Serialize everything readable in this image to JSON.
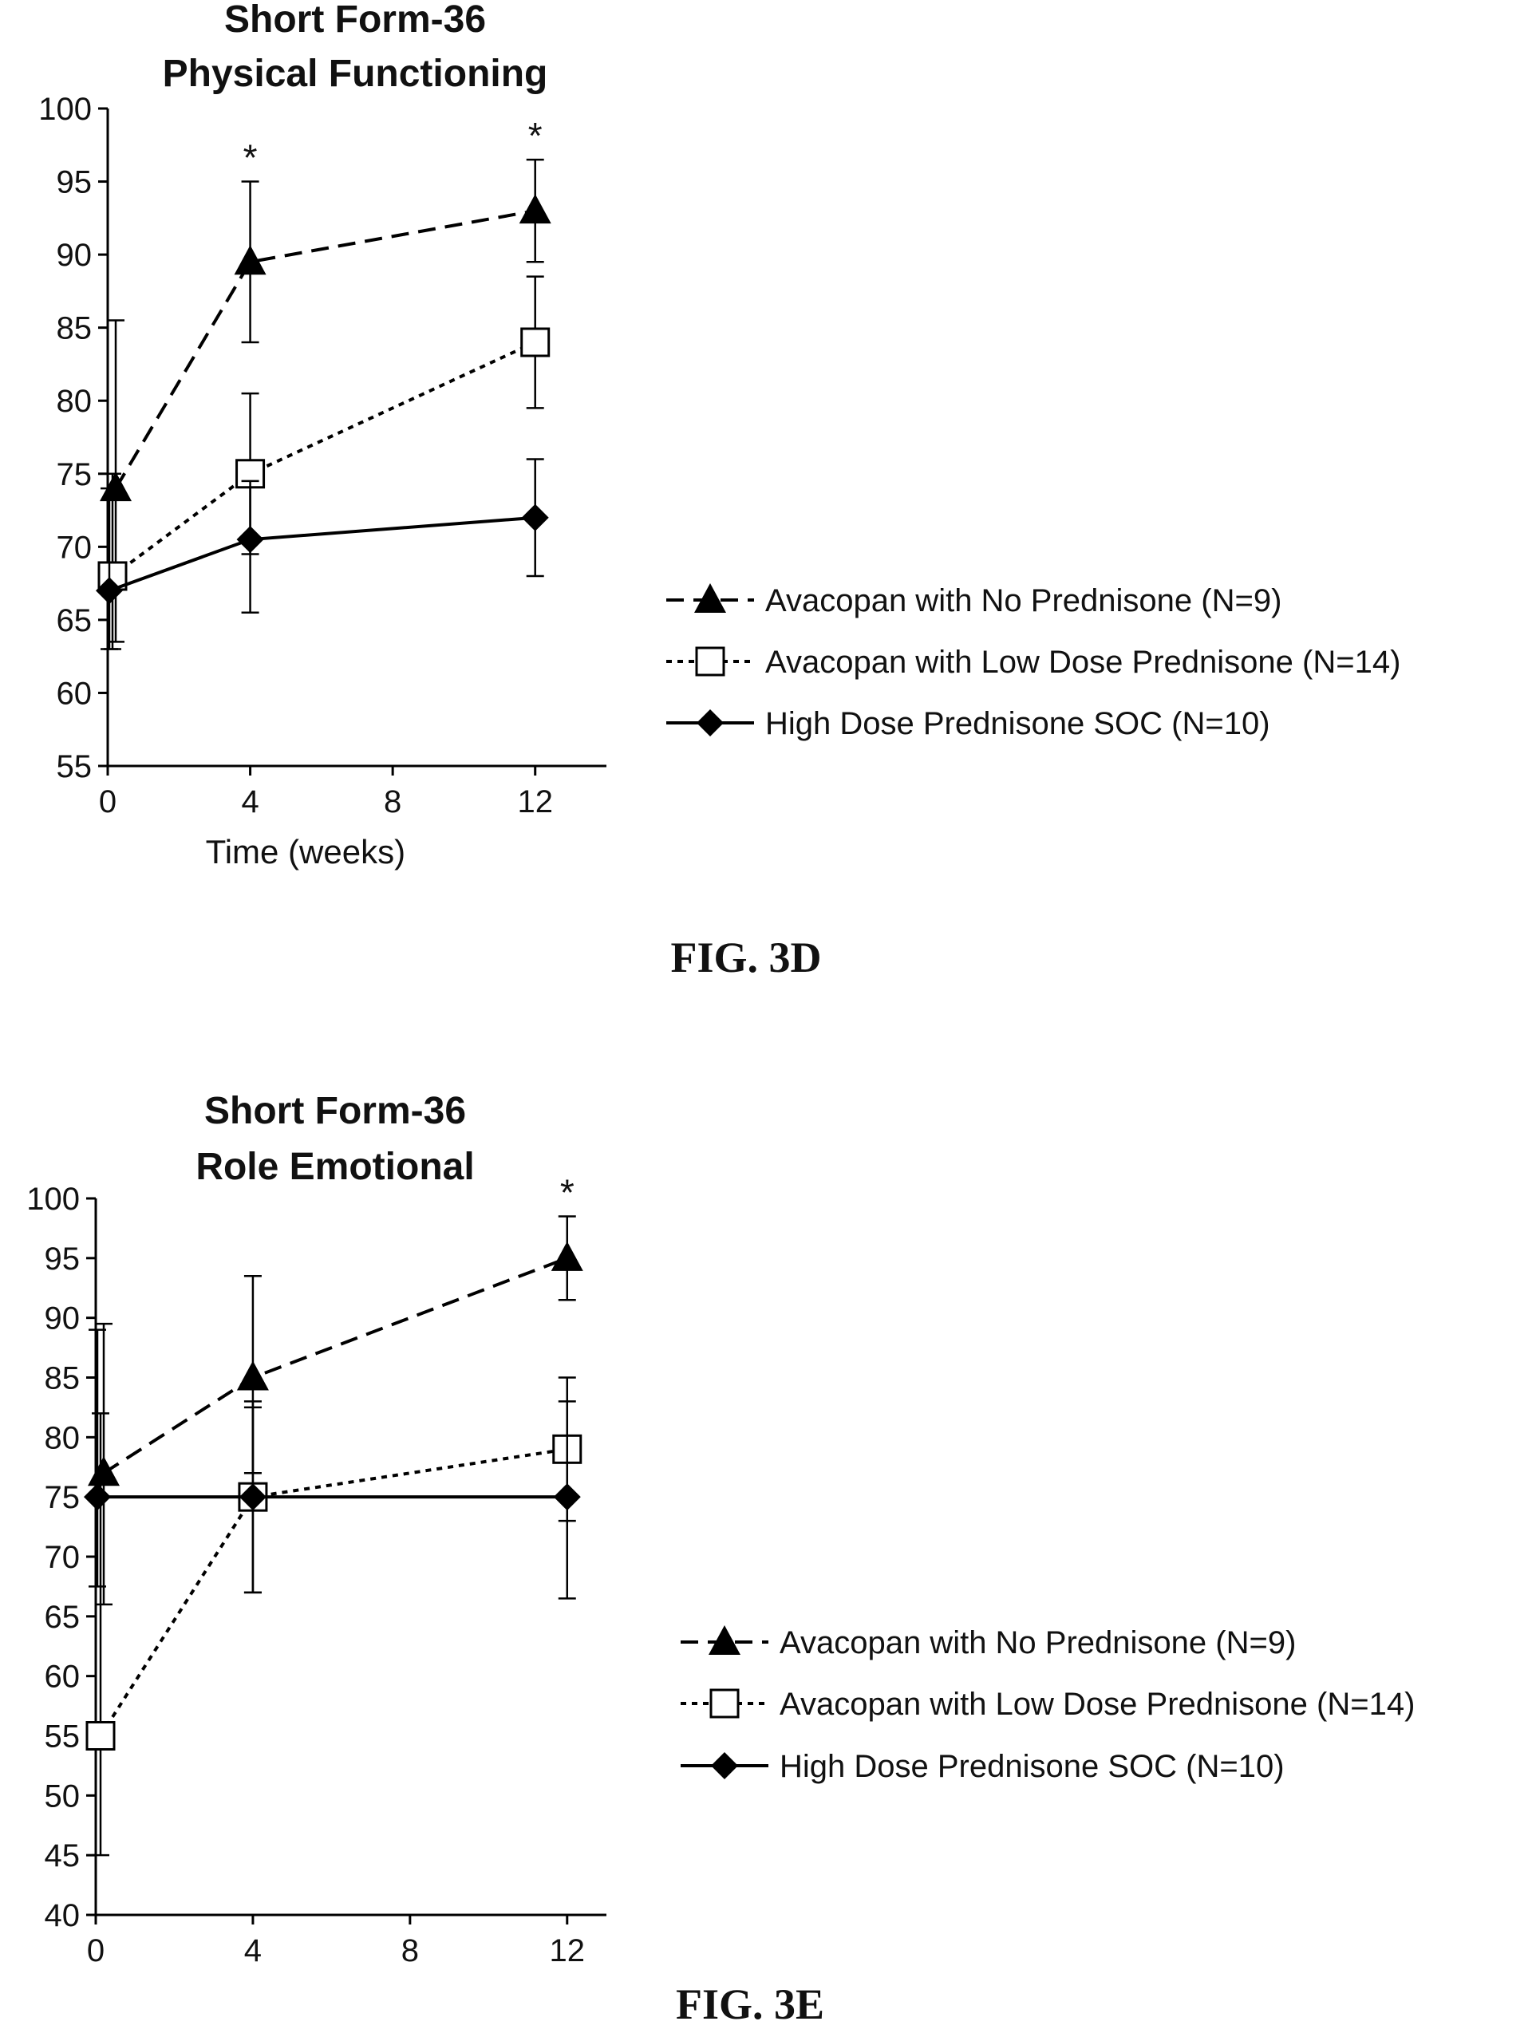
{
  "chart_data": [
    {
      "type": "line",
      "title": [
        "Short Form-36",
        "Physical Functioning"
      ],
      "xlabel": "Time (weeks)",
      "ylabel": "",
      "x": [
        0,
        4,
        12
      ],
      "xticks": [
        0,
        4,
        8,
        12
      ],
      "xlim": [
        0,
        14
      ],
      "ylim": [
        55,
        100
      ],
      "yticks": [
        55,
        60,
        65,
        70,
        75,
        80,
        85,
        90,
        95,
        100
      ],
      "grid": false,
      "legend_position": "right",
      "series": [
        {
          "name": "Avacopan with No Prednisone (N=9)",
          "marker": "filled-triangle",
          "line": "dashed",
          "values": [
            74,
            89.5,
            93
          ],
          "err_hi": [
            11.5,
            5.5,
            3.5
          ],
          "err_lo": [
            10.5,
            5.5,
            3.5
          ]
        },
        {
          "name": "Avacopan with Low Dose Prednisone (N=14)",
          "marker": "open-square",
          "line": "dotted",
          "values": [
            68,
            75,
            84
          ],
          "err_hi": [
            7,
            5.5,
            4.5
          ],
          "err_lo": [
            5,
            5.5,
            4.5
          ]
        },
        {
          "name": "High Dose Prednisone SOC (N=10)",
          "marker": "filled-diamond",
          "line": "solid",
          "values": [
            67,
            70.5,
            72
          ],
          "err_hi": [
            7,
            4,
            4
          ],
          "err_lo": [
            4,
            5,
            4
          ]
        }
      ],
      "annotations": [
        {
          "x": 4,
          "text": "*"
        },
        {
          "x": 12,
          "text": "*"
        }
      ],
      "caption": "FIG. 3D"
    },
    {
      "type": "line",
      "title": [
        "Short Form-36",
        "Role Emotional"
      ],
      "xlabel": "",
      "ylabel": "",
      "x": [
        0,
        4,
        12
      ],
      "xticks": [
        0,
        4,
        8,
        12
      ],
      "xlim": [
        0,
        13
      ],
      "ylim": [
        40,
        100
      ],
      "yticks": [
        40,
        45,
        50,
        55,
        60,
        65,
        70,
        75,
        80,
        85,
        90,
        95,
        100
      ],
      "grid": false,
      "legend_position": "right",
      "series": [
        {
          "name": "Avacopan with No Prednisone (N=9)",
          "marker": "filled-triangle",
          "line": "dashed",
          "values": [
            77,
            85,
            95
          ],
          "err_hi": [
            12.5,
            8.5,
            3.5
          ],
          "err_lo": [
            11,
            8,
            3.5
          ]
        },
        {
          "name": "Avacopan with Low Dose Prednisone (N=14)",
          "marker": "open-square",
          "line": "dotted",
          "values": [
            55,
            75,
            79
          ],
          "err_hi": [
            27,
            7.5,
            6
          ],
          "err_lo": [
            10,
            8,
            6
          ]
        },
        {
          "name": "High Dose Prednisone SOC (N=10)",
          "marker": "filled-diamond",
          "line": "solid",
          "values": [
            75,
            75,
            75
          ],
          "err_hi": [
            14,
            8,
            8
          ],
          "err_lo": [
            7.5,
            8,
            8.5
          ]
        }
      ],
      "annotations": [
        {
          "x": 12,
          "text": "*"
        }
      ],
      "caption": "FIG. 3E"
    }
  ]
}
